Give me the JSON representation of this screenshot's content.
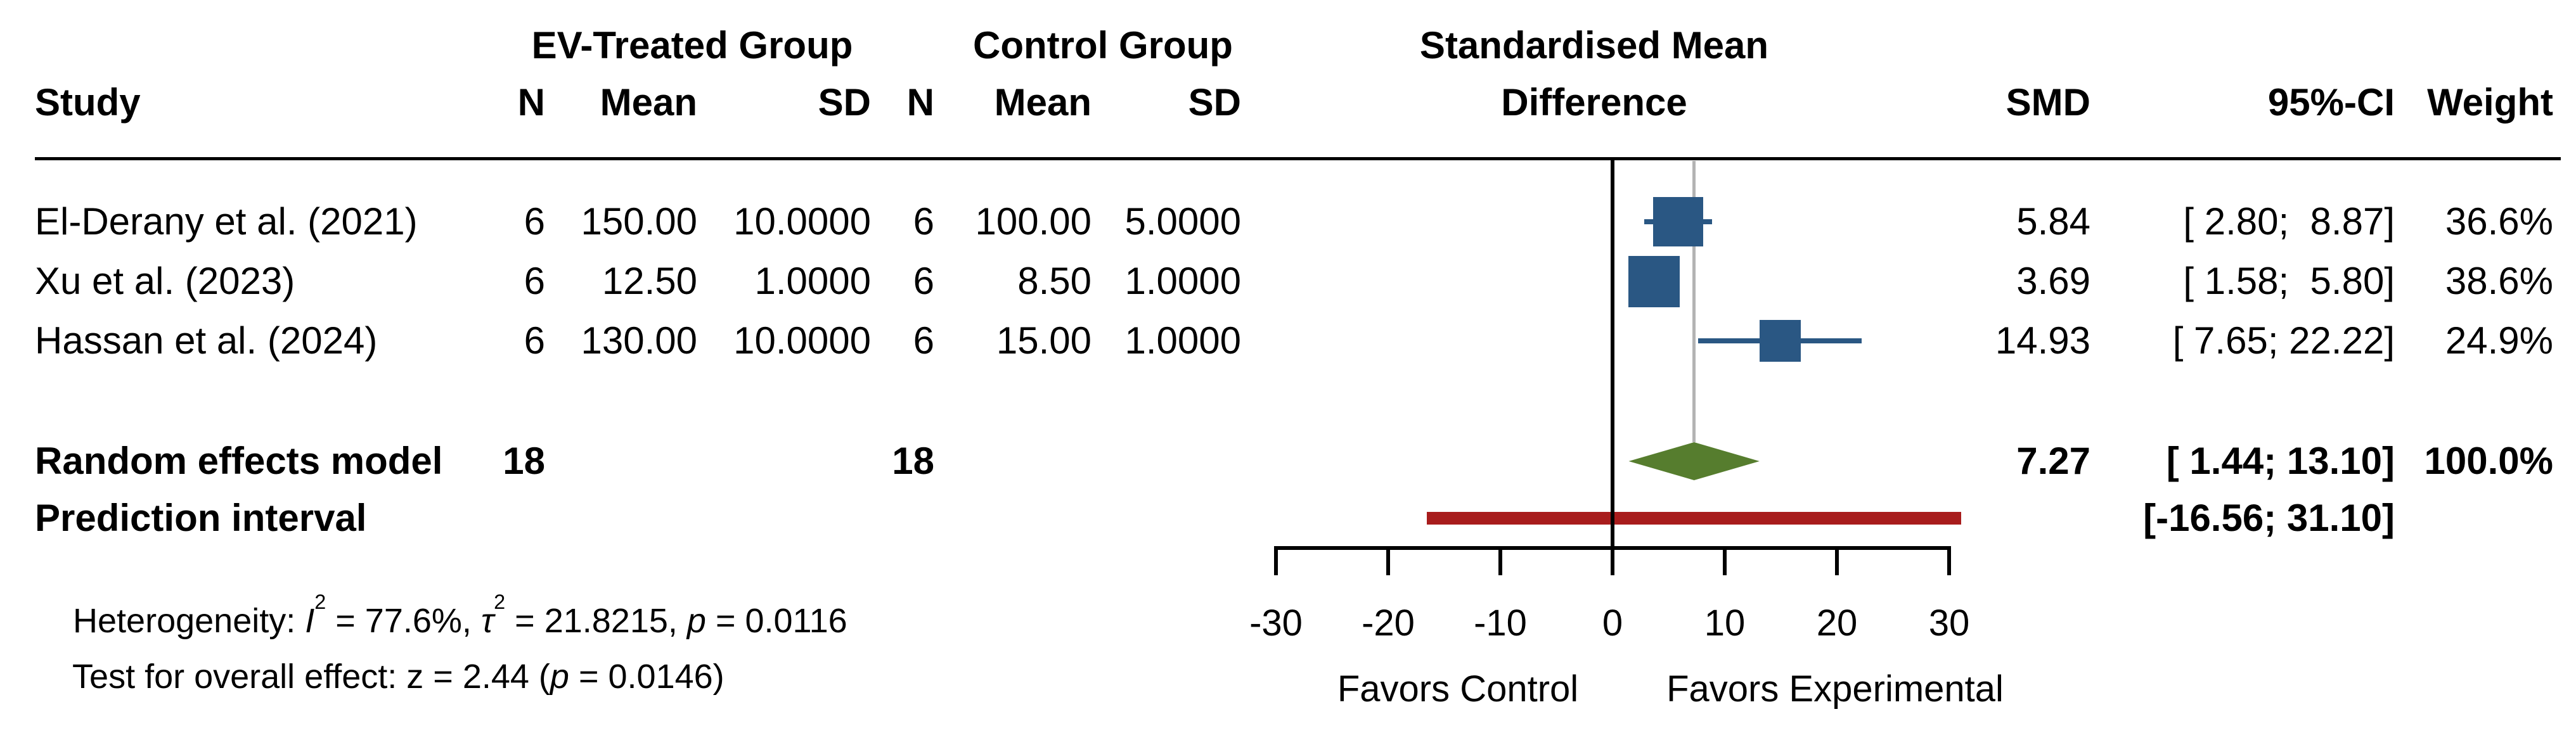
{
  "colors": {
    "square": "#2A5783",
    "diamond": "#567D2E",
    "prediction_bar": "#A81C1C",
    "pooled_line": "#B3B3B3",
    "axis": "#000000",
    "text": "#000000",
    "background": "#FFFFFF"
  },
  "header": {
    "study": "Study",
    "group1_title": "EV-Treated Group",
    "group2_title": "Control Group",
    "effect_title_line1": "Standardised Mean",
    "effect_title_line2": "Difference",
    "n1": "N",
    "mean1": "Mean",
    "sd1": "SD",
    "n2": "N",
    "mean2": "Mean",
    "sd2": "SD",
    "smd": "SMD",
    "ci": "95%-CI",
    "weight": "Weight"
  },
  "chart_data": {
    "type": "forest",
    "x_axis": {
      "min": -30,
      "max": 30,
      "ticks": [
        -30,
        -20,
        -10,
        0,
        10,
        20,
        30
      ],
      "zero_line": 0,
      "pooled_effect_line": 7.27
    },
    "studies": [
      {
        "label": "El-Derany et al. (2021)",
        "n_treated": "6",
        "mean_treated": "150.00",
        "sd_treated": "10.0000",
        "n_control": "6",
        "mean_control": "100.00",
        "sd_control": "5.0000",
        "smd": 5.84,
        "ci_low": 2.8,
        "ci_high": 8.87,
        "weight_pct": 36.6,
        "smd_text": "5.84",
        "ci_text": "[ 2.80;  8.87]",
        "weight_text": "36.6%"
      },
      {
        "label": "Xu et al. (2023)",
        "n_treated": "6",
        "mean_treated": "12.50",
        "sd_treated": "1.0000",
        "n_control": "6",
        "mean_control": "8.50",
        "sd_control": "1.0000",
        "smd": 3.69,
        "ci_low": 1.58,
        "ci_high": 5.8,
        "weight_pct": 38.6,
        "smd_text": "3.69",
        "ci_text": "[ 1.58;  5.80]",
        "weight_text": "38.6%"
      },
      {
        "label": "Hassan et al. (2024)",
        "n_treated": "6",
        "mean_treated": "130.00",
        "sd_treated": "10.0000",
        "n_control": "6",
        "mean_control": "15.00",
        "sd_control": "1.0000",
        "smd": 14.93,
        "ci_low": 7.65,
        "ci_high": 22.22,
        "weight_pct": 24.9,
        "smd_text": "14.93",
        "ci_text": "[ 7.65; 22.22]",
        "weight_text": "24.9%"
      }
    ],
    "summary": {
      "label": "Random effects model",
      "n_treated_total": "18",
      "n_control_total": "18",
      "smd": 7.27,
      "ci_low": 1.44,
      "ci_high": 13.1,
      "smd_text": "7.27",
      "ci_text": "[ 1.44; 13.10]",
      "weight_text": "100.0%"
    },
    "prediction_interval": {
      "label": "Prediction interval",
      "low": -16.56,
      "high": 31.1,
      "ci_text": "[-16.56; 31.10]"
    },
    "footer_labels": {
      "favors_left": "Favors Control",
      "favors_right": "Favors Experimental"
    },
    "heterogeneity": {
      "t1": "Heterogeneity: ",
      "i1": "I",
      "s1": "2",
      "t2": " = 77.6%, ",
      "i2": "τ",
      "s2": "2",
      "t3": " = 21.8215, ",
      "i3": "p",
      "t4": " = 0.0116"
    },
    "overall_test": {
      "t1": "Test for overall effect: z = 2.44 (",
      "i1": "p",
      "t2": " = 0.0146)"
    }
  }
}
